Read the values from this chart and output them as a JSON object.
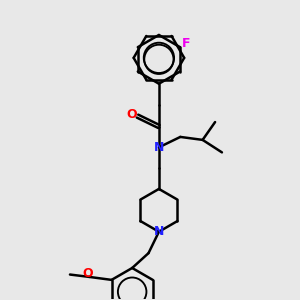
{
  "background_color": "#e8e8e8",
  "bond_color": "#000000",
  "N_color": "#2222ff",
  "O_color": "#ff0000",
  "F_color": "#ee00ee",
  "bond_width": 1.8,
  "figsize": [
    3.0,
    3.0
  ],
  "dpi": 100,
  "xlim": [
    0,
    10
  ],
  "ylim": [
    0,
    10
  ]
}
